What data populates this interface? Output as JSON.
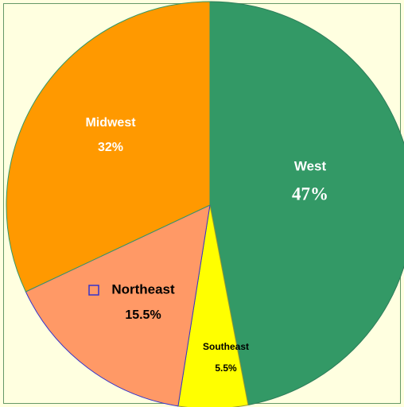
{
  "chart_data": {
    "type": "pie",
    "categories": [
      "West",
      "Southeast",
      "Northeast",
      "Midwest"
    ],
    "values": [
      47,
      5.5,
      15.5,
      32
    ],
    "value_labels": [
      "47%",
      "5.5%",
      "15.5%",
      "32%"
    ],
    "colors": [
      "#339966",
      "#ffff00",
      "#ff9966",
      "#ff9900"
    ]
  }
}
